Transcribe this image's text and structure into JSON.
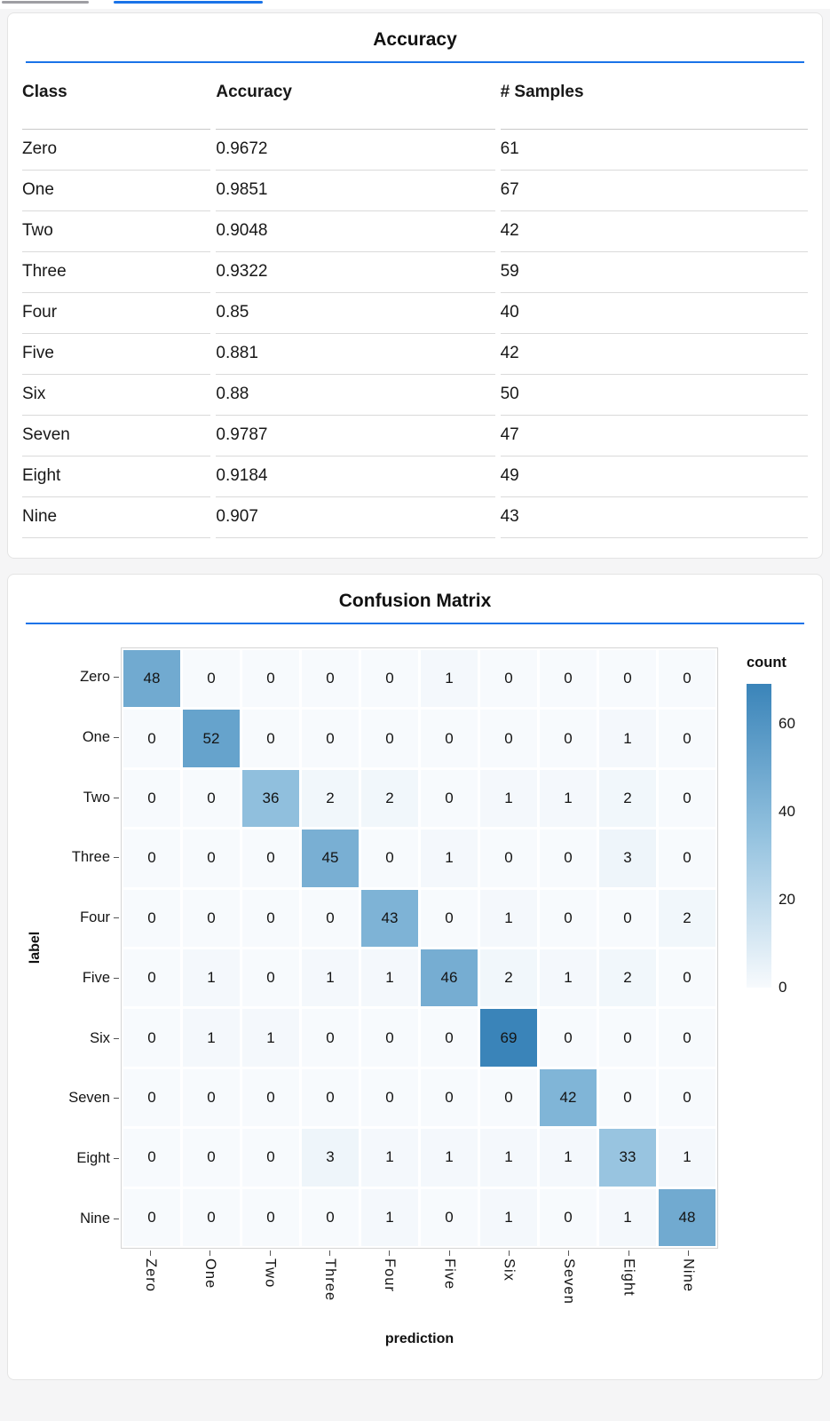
{
  "accent": {
    "rule_blue": "#1a73e8",
    "tab_indicator_active": "#1a73e8",
    "tab_indicator_inactive": "#9e9ea3"
  },
  "accuracy_card": {
    "title": "Accuracy",
    "table": {
      "columns": [
        "Class",
        "Accuracy",
        "# Samples"
      ],
      "rows": [
        [
          "Zero",
          "0.9672",
          "61"
        ],
        [
          "One",
          "0.9851",
          "67"
        ],
        [
          "Two",
          "0.9048",
          "42"
        ],
        [
          "Three",
          "0.9322",
          "59"
        ],
        [
          "Four",
          "0.85",
          "40"
        ],
        [
          "Five",
          "0.881",
          "42"
        ],
        [
          "Six",
          "0.88",
          "50"
        ],
        [
          "Seven",
          "0.9787",
          "47"
        ],
        [
          "Eight",
          "0.9184",
          "49"
        ],
        [
          "Nine",
          "0.907",
          "43"
        ]
      ]
    }
  },
  "confusion_card": {
    "title": "Confusion Matrix",
    "chart_data": {
      "type": "heatmap",
      "title": "Confusion Matrix",
      "xlabel": "prediction",
      "ylabel": "label",
      "x_categories": [
        "Zero",
        "One",
        "Two",
        "Three",
        "Four",
        "Five",
        "Six",
        "Seven",
        "Eight",
        "Nine"
      ],
      "y_categories": [
        "Zero",
        "One",
        "Two",
        "Three",
        "Four",
        "Five",
        "Six",
        "Seven",
        "Eight",
        "Nine"
      ],
      "legend": {
        "title": "count",
        "ticks": [
          60,
          40,
          20,
          0
        ],
        "domain": [
          0,
          69
        ]
      },
      "colors": {
        "low": "#f7fafd",
        "mid": "#94c2df",
        "high": "#3a84b9"
      },
      "matrix": [
        [
          48,
          0,
          0,
          0,
          0,
          1,
          0,
          0,
          0,
          0
        ],
        [
          0,
          52,
          0,
          0,
          0,
          0,
          0,
          0,
          1,
          0
        ],
        [
          0,
          0,
          36,
          2,
          2,
          0,
          1,
          1,
          2,
          0
        ],
        [
          0,
          0,
          0,
          45,
          0,
          1,
          0,
          0,
          3,
          0
        ],
        [
          0,
          0,
          0,
          0,
          43,
          0,
          1,
          0,
          0,
          2
        ],
        [
          0,
          1,
          0,
          1,
          1,
          46,
          2,
          1,
          2,
          0
        ],
        [
          0,
          1,
          1,
          0,
          0,
          0,
          69,
          0,
          0,
          0
        ],
        [
          0,
          0,
          0,
          0,
          0,
          0,
          0,
          42,
          0,
          0
        ],
        [
          0,
          0,
          0,
          3,
          1,
          1,
          1,
          1,
          33,
          1
        ],
        [
          0,
          0,
          0,
          0,
          1,
          0,
          1,
          0,
          1,
          48
        ]
      ]
    }
  }
}
